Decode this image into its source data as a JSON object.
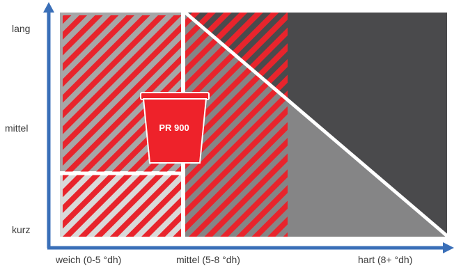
{
  "y_axis": {
    "labels": [
      "lang",
      "mittel",
      "kurz"
    ]
  },
  "x_axis": {
    "labels": [
      "weich (0-5 °dh)",
      "mittel (5-8 °dh)",
      "hart (8+ °dh)"
    ]
  },
  "product": {
    "label": "PR 900"
  },
  "colors": {
    "axis": "#3a6fb8",
    "hatch": "#e8242c",
    "dark_region": "#4a4a4c",
    "mid_region": "#858586",
    "light_gray": "#a6a6a7",
    "lightest_gray": "#d9d9d9",
    "cup": "#ee222a"
  }
}
